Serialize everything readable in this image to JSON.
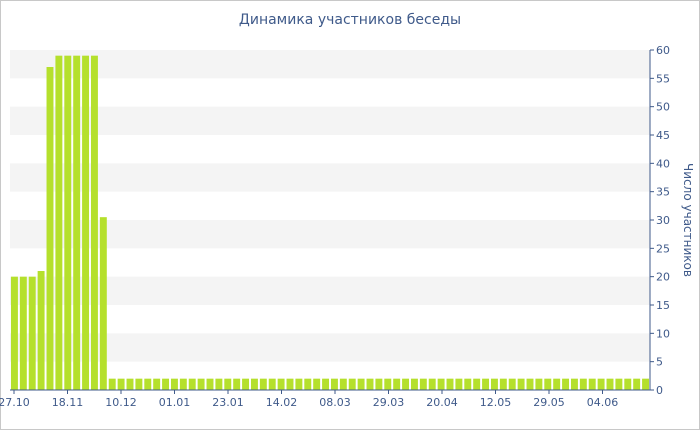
{
  "chart_data": {
    "type": "bar",
    "title": "Динамика участников беседы",
    "xlabel": "",
    "ylabel": "Число участников",
    "ylim": [
      0,
      60
    ],
    "y_ticks": [
      0,
      5,
      10,
      15,
      20,
      25,
      30,
      35,
      40,
      45,
      50,
      55,
      60
    ],
    "x_tick_labels": [
      "27.10",
      "18.11",
      "10.12",
      "01.01",
      "23.01",
      "14.02",
      "08.03",
      "29.03",
      "20.04",
      "12.05",
      "29.05",
      "04.06"
    ],
    "grid": "alternating horizontal bands",
    "legend": "none",
    "colors": {
      "bar": "#b5e02c",
      "band": "#f4f4f4",
      "text": "#3f5a8a",
      "axis": "#3f5a8a"
    },
    "values": [
      20,
      20,
      20,
      21,
      57,
      59,
      59,
      59,
      59,
      59,
      30.5,
      2,
      2,
      2,
      2,
      2,
      2,
      2,
      2,
      2,
      2,
      2,
      2,
      2,
      2,
      2,
      2,
      2,
      2,
      2,
      2,
      2,
      2,
      2,
      2,
      2,
      2,
      2,
      2,
      2,
      2,
      2,
      2,
      2,
      2,
      2,
      2,
      2,
      2,
      2,
      2,
      2,
      2,
      2,
      2,
      2,
      2,
      2,
      2,
      2,
      2,
      2,
      2,
      2,
      2,
      2,
      2,
      2,
      2,
      2,
      2,
      2
    ]
  }
}
